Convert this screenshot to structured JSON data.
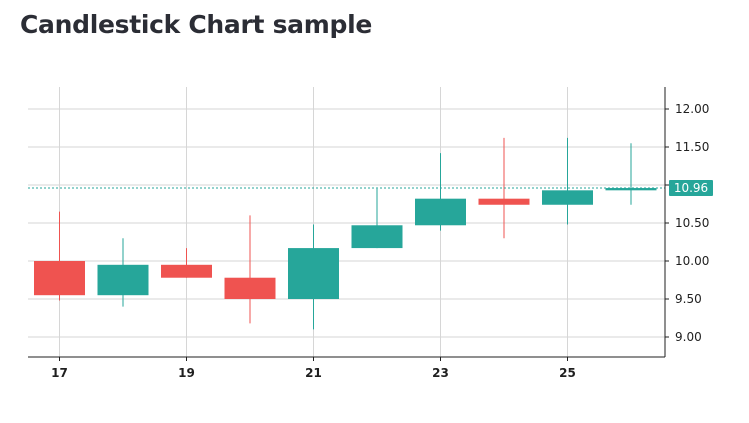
{
  "page": {
    "title": "Candlestick Chart sample"
  },
  "chart_data": {
    "type": "candlestick",
    "title": "Candlestick Chart sample",
    "x_ticks": [
      "17",
      "19",
      "21",
      "23",
      "25"
    ],
    "y_ticks": [
      "9.00",
      "9.50",
      "10.00",
      "10.50",
      "11.00",
      "11.50",
      "12.00"
    ],
    "ylim": [
      8.8,
      12.2
    ],
    "last_value_label": "10.96",
    "colors": {
      "up": "#26a69a",
      "down": "#ef5350",
      "grid": "#d6d6d6",
      "axis": "#1f1f1f",
      "last_label_bg": "#26a69a"
    },
    "candles": [
      {
        "x": 17,
        "open": 10.0,
        "high": 10.65,
        "low": 9.48,
        "close": 9.55
      },
      {
        "x": 18,
        "open": 9.55,
        "high": 10.3,
        "low": 9.4,
        "close": 9.95
      },
      {
        "x": 19,
        "open": 9.95,
        "high": 10.17,
        "low": 9.78,
        "close": 9.78
      },
      {
        "x": 20,
        "open": 9.78,
        "high": 10.6,
        "low": 9.18,
        "close": 9.5
      },
      {
        "x": 21,
        "open": 9.5,
        "high": 10.48,
        "low": 9.1,
        "close": 10.17
      },
      {
        "x": 22,
        "open": 10.17,
        "high": 10.95,
        "low": 10.17,
        "close": 10.47
      },
      {
        "x": 23,
        "open": 10.47,
        "high": 11.42,
        "low": 10.4,
        "close": 10.82
      },
      {
        "x": 24,
        "open": 10.82,
        "high": 11.62,
        "low": 10.3,
        "close": 10.74
      },
      {
        "x": 25,
        "open": 10.74,
        "high": 11.62,
        "low": 10.48,
        "close": 10.93
      },
      {
        "x": 26,
        "open": 10.93,
        "high": 11.55,
        "low": 10.74,
        "close": 10.96
      }
    ]
  }
}
